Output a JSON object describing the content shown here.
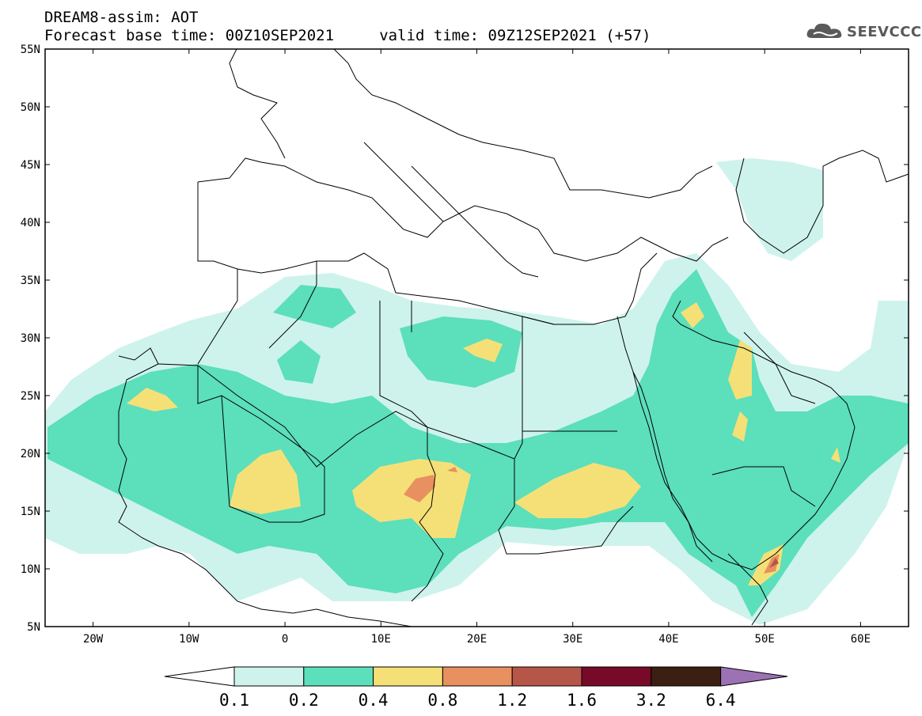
{
  "header": {
    "line1": "DREAM8-assim: AOT",
    "line2": "Forecast base time: 00Z10SEP2021     valid time: 09Z12SEP2021 (+57)"
  },
  "logo": {
    "text": "SEEVCCC",
    "icon": "cloud-icon"
  },
  "map": {
    "lat_labels": [
      "55N",
      "50N",
      "45N",
      "40N",
      "35N",
      "30N",
      "25N",
      "20N",
      "15N",
      "10N",
      "5N"
    ],
    "lon_labels": [
      "20W",
      "10W",
      "0",
      "10E",
      "20E",
      "30E",
      "40E",
      "50E",
      "60E"
    ],
    "lat_range": [
      5,
      55
    ],
    "lon_range": [
      -25,
      65
    ]
  },
  "legend": {
    "labels": [
      "0.1",
      "0.2",
      "0.4",
      "0.8",
      "1.2",
      "1.6",
      "3.2",
      "6.4"
    ],
    "colors": [
      "#ffffff",
      "#cef3ec",
      "#5cdfbb",
      "#f5e077",
      "#e89060",
      "#b65648",
      "#770a28",
      "#3b1f12",
      "#9d72b5"
    ]
  }
}
